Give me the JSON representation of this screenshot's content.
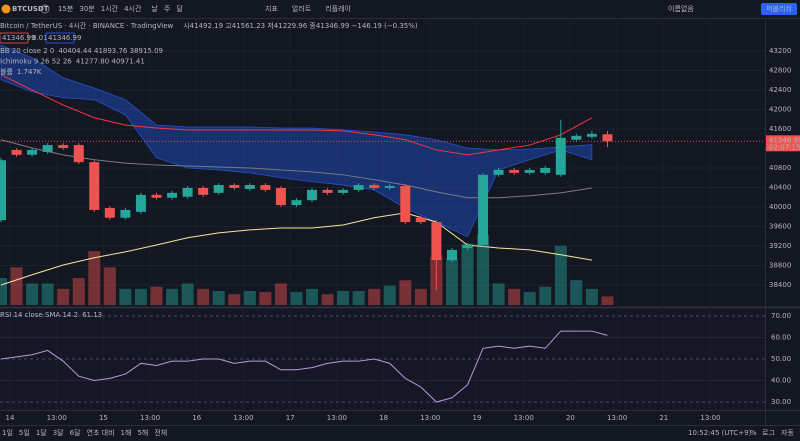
{
  "toolbar": {
    "symbol": "BTCUSDT",
    "intervals": [
      "15분",
      "30분",
      "1시간",
      "4시간"
    ],
    "chart_types": [
      "날",
      "주",
      "달"
    ],
    "buttons": [
      "지표",
      "얼러트",
      "리플레이"
    ],
    "layout_name": "이름없음",
    "publish": "퍼블리쉬"
  },
  "legend": {
    "title": "Bitcoin / TetherUS · 4시간 · BINANCE · TradingView",
    "ohlc": "시41492.19 고41561.23 저41229.96 종41346.99 −146.19 (−0.35%)",
    "bid": "41346.99",
    "spread": "0.01",
    "ask": "41346.99",
    "indicators": [
      {
        "name": "BB 20 close 2 0",
        "values": "40404.44 41893.76 38915.09"
      },
      {
        "name": "Ichimoku 9 26 52 26",
        "values": "41277.80 40971.41"
      },
      {
        "name": "볼륨",
        "values": "1.747K"
      }
    ]
  },
  "chart_data": {
    "type": "candlestick",
    "ylim": [
      37990,
      43630
    ],
    "yticks": [
      43200,
      42800,
      42400,
      42000,
      41600,
      40800,
      40400,
      40000,
      39600,
      39200,
      38800,
      38400
    ],
    "candles": {
      "up_color": "#26a69a",
      "down_color": "#ef5350",
      "open": [
        39730,
        41170,
        41070,
        41130,
        41270,
        41270,
        40920,
        39980,
        39780,
        39900,
        40250,
        40190,
        40210,
        40390,
        40290,
        40450,
        40370,
        40450,
        40390,
        40040,
        40140,
        40350,
        40290,
        40350,
        40450,
        40390,
        40430,
        39780,
        39690,
        38910,
        39160,
        39220,
        40660,
        40760,
        40700,
        40700,
        40660,
        41380,
        41440,
        41492.19
      ],
      "high": [
        41010,
        41210,
        41210,
        41310,
        41310,
        41310,
        40960,
        40020,
        39980,
        40290,
        40290,
        40330,
        40430,
        40430,
        40490,
        40490,
        40490,
        40490,
        40430,
        40180,
        40390,
        40390,
        40390,
        40490,
        40490,
        40470,
        40470,
        39820,
        39730,
        39160,
        39260,
        40700,
        40800,
        40800,
        40800,
        40840,
        41790,
        41500,
        41560,
        41561.23
      ],
      "low": [
        39690,
        41030,
        41030,
        41090,
        41170,
        40880,
        39900,
        39740,
        39740,
        39860,
        40150,
        40150,
        40170,
        40210,
        40250,
        40350,
        40330,
        40310,
        40000,
        40000,
        40100,
        40250,
        40250,
        40310,
        40350,
        40350,
        39650,
        39650,
        38300,
        38870,
        39120,
        39180,
        40620,
        40660,
        40660,
        40660,
        40620,
        41340,
        41400,
        41229.96
      ],
      "close": [
        40960,
        41070,
        41170,
        41270,
        41210,
        40920,
        39940,
        39780,
        39940,
        40250,
        40190,
        40290,
        40390,
        40250,
        40450,
        40390,
        40450,
        40350,
        40040,
        40140,
        40350,
        40290,
        40350,
        40450,
        40390,
        40430,
        39690,
        39690,
        38910,
        39120,
        39220,
        40660,
        40760,
        40700,
        40760,
        40800,
        41420,
        41460,
        41500,
        41346.99
      ]
    },
    "volume": {
      "values": [
        25,
        35,
        20,
        20,
        15,
        25,
        50,
        35,
        15,
        15,
        17,
        15,
        20,
        15,
        13,
        10,
        13,
        12,
        20,
        12,
        15,
        10,
        13,
        13,
        15,
        18,
        23,
        15,
        45,
        43,
        57,
        65,
        20,
        15,
        12,
        17,
        55,
        23,
        15,
        8
      ]
    },
    "cloud": {
      "color": "#2962ff",
      "upper": [
        43320,
        43060,
        42650,
        42440,
        42200,
        41680,
        41640,
        41640,
        41640,
        41620,
        41620,
        41580,
        41540,
        41480,
        41380,
        41210,
        41170,
        41190,
        41230,
        41280
      ],
      "lower": [
        42610,
        42360,
        42240,
        42200,
        41890,
        41010,
        40800,
        40760,
        40700,
        40600,
        40520,
        40450,
        40350,
        39980,
        39690,
        39390,
        40760,
        40970,
        41170,
        40970
      ]
    },
    "bands": [
      {
        "color": "#f23645",
        "values": [
          42710,
          42400,
          42090,
          41830,
          41680,
          41620,
          41580,
          41580,
          41580,
          41580,
          41580,
          41560,
          41480,
          41380,
          41170,
          41070,
          41170,
          41270,
          41480,
          41830
        ]
      },
      {
        "color": "#787b86",
        "values": [
          41380,
          41210,
          41070,
          40970,
          40900,
          40860,
          40840,
          40820,
          40800,
          40760,
          40720,
          40660,
          40560,
          40450,
          40310,
          40190,
          40190,
          40230,
          40290,
          40390
        ]
      },
      {
        "color": "#f5e79b",
        "values": [
          38400,
          38610,
          38810,
          38960,
          39080,
          39220,
          39370,
          39470,
          39530,
          39570,
          39570,
          39630,
          39780,
          39880,
          39690,
          39220,
          39160,
          39120,
          39020,
          38910
        ]
      }
    ],
    "last_price": {
      "value": "41346.99",
      "countdown": "02:07:15"
    },
    "rsi": {
      "title": "RSI 14 close SMA 14 2",
      "reading": "61.13",
      "color": "#b39ddb",
      "ylim": [
        26.3,
        72.8
      ],
      "yticks": [
        {
          "value": 70,
          "label": "70.00"
        },
        {
          "value": 60,
          "label": "60.00"
        },
        {
          "value": 50,
          "label": "50.00"
        },
        {
          "value": 40,
          "label": "40.00"
        },
        {
          "value": 30,
          "label": "30.00"
        }
      ],
      "values": [
        50,
        51,
        52,
        54,
        49,
        42,
        40,
        41,
        43,
        48,
        47,
        49,
        49,
        50,
        50,
        48,
        49,
        49,
        45,
        45,
        46,
        48,
        49,
        49,
        50,
        48,
        41,
        37,
        30,
        32,
        38,
        55,
        56,
        55,
        56,
        55,
        63,
        63,
        63,
        61
      ]
    },
    "x_labels": [
      "14",
      "13:00",
      "15",
      "13:00",
      "16",
      "13:00",
      "17",
      "13:00",
      "18",
      "13:00",
      "19",
      "13:00",
      "20",
      "13:00",
      "21",
      "13:00"
    ]
  },
  "bottom": {
    "ranges": [
      "1일",
      "5일",
      "1달",
      "3달",
      "6달",
      "연초 대비",
      "1해",
      "5해",
      "전체"
    ],
    "time": "10:52:45 (UTC+9)",
    "percent": "%",
    "log": "로그",
    "auto": "자동"
  }
}
